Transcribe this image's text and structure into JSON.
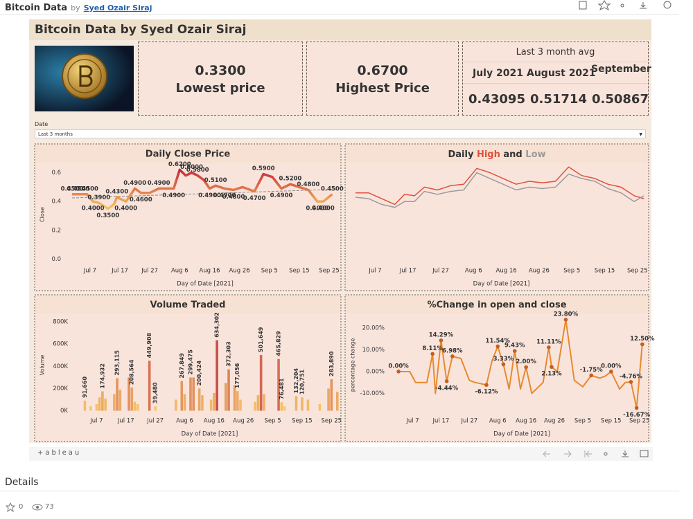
{
  "header": {
    "title": "Bitcoin Data",
    "by": "by",
    "author": "Syed Ozair Siraj"
  },
  "dashboard": {
    "title": "Bitcoin Data by Syed Ozair Siraj",
    "kpis": [
      {
        "value": "0.3300",
        "label": "Lowest price"
      },
      {
        "value": "0.6700",
        "label": "Highest Price"
      }
    ],
    "avg": {
      "title": "Last 3 month avg",
      "months": [
        "July 2021",
        "August 2021",
        "September"
      ],
      "values": [
        "0.43095",
        "0.51714",
        "0.50867"
      ]
    },
    "filter": {
      "label": "Date",
      "value": "Last 3 months"
    }
  },
  "chart_data": [
    {
      "type": "line",
      "title": "Daily Close Price",
      "x_label": "Day of Date [2021]",
      "y_label": "Close",
      "x": [
        "2021-07-01",
        "2021-07-03",
        "2021-07-06",
        "2021-07-08",
        "2021-07-10",
        "2021-07-13",
        "2021-07-15",
        "2021-07-16",
        "2021-07-19",
        "2021-07-20",
        "2021-07-22",
        "2021-07-24",
        "2021-07-27",
        "2021-07-30",
        "2021-08-04",
        "2021-08-06",
        "2021-08-08",
        "2021-08-10",
        "2021-08-12",
        "2021-08-14",
        "2021-08-16",
        "2021-08-18",
        "2021-08-21",
        "2021-08-24",
        "2021-08-27",
        "2021-08-31",
        "2021-09-03",
        "2021-09-06",
        "2021-09-09",
        "2021-09-12",
        "2021-09-15",
        "2021-09-18",
        "2021-09-21",
        "2021-09-23",
        "2021-09-26"
      ],
      "values": [
        0.45,
        0.45,
        0.45,
        0.4,
        0.39,
        0.35,
        0.38,
        0.43,
        0.4,
        0.43,
        0.49,
        0.46,
        0.46,
        0.49,
        0.49,
        0.62,
        0.58,
        0.6,
        0.58,
        0.55,
        0.49,
        0.51,
        0.49,
        0.48,
        0.5,
        0.47,
        0.59,
        0.57,
        0.49,
        0.52,
        0.5,
        0.48,
        0.4,
        0.4,
        0.45
      ],
      "value_labels": [
        "0.4500",
        "0.4500",
        "0.4500",
        "0.4000",
        "0.3900",
        "0.3500",
        null,
        "0.4300",
        "0.4000",
        null,
        "0.4900",
        "0.4600",
        null,
        "0.4900",
        "0.4900",
        "0.6200",
        null,
        "0.6000",
        "0.5800",
        null,
        "0.4900",
        "0.5100",
        "0.4900",
        "0.4800",
        null,
        "0.4700",
        "0.5900",
        null,
        "0.4900",
        "0.5200",
        null,
        "0.4800",
        "0.4000",
        "0.4000",
        "0.4500"
      ],
      "color_scale": [
        "#f5c25e",
        "#c8283a"
      ],
      "trendline": [
        0.425,
        0.485
      ],
      "trendline_color": "#8a8a8a",
      "xlim": [
        "2021-07-01",
        "2021-09-28"
      ],
      "xticks": [
        {
          "value": "2021-07-07",
          "label": "Jul 7"
        },
        {
          "value": "2021-07-17",
          "label": "Jul 17"
        },
        {
          "value": "2021-07-27",
          "label": "Jul 27"
        },
        {
          "value": "2021-08-06",
          "label": "Aug 6"
        },
        {
          "value": "2021-08-16",
          "label": "Aug 16"
        },
        {
          "value": "2021-08-26",
          "label": "Aug 26"
        },
        {
          "value": "2021-09-05",
          "label": "Sep 5"
        },
        {
          "value": "2021-09-15",
          "label": "Sep 15"
        },
        {
          "value": "2021-09-25",
          "label": "Sep 25"
        }
      ],
      "ylim": [
        -0.04,
        0.66
      ],
      "yticks": [
        {
          "value": 0,
          "label": "0.0"
        },
        0.2,
        0.4,
        0.6
      ]
    },
    {
      "type": "line",
      "title_prefix": "Daily",
      "title_joiner": "and",
      "x_label": "Day of Date [2021]",
      "x": [
        "2021-07-01",
        "2021-07-05",
        "2021-07-09",
        "2021-07-13",
        "2021-07-16",
        "2021-07-19",
        "2021-07-22",
        "2021-07-26",
        "2021-07-30",
        "2021-08-03",
        "2021-08-07",
        "2021-08-11",
        "2021-08-15",
        "2021-08-19",
        "2021-08-23",
        "2021-08-27",
        "2021-08-31",
        "2021-09-04",
        "2021-09-08",
        "2021-09-12",
        "2021-09-16",
        "2021-09-20",
        "2021-09-24",
        "2021-09-27"
      ],
      "series": [
        {
          "name": "High",
          "color": "#e0503c",
          "values": [
            0.46,
            0.46,
            0.42,
            0.38,
            0.45,
            0.44,
            0.5,
            0.48,
            0.51,
            0.52,
            0.63,
            0.6,
            0.56,
            0.52,
            0.54,
            0.53,
            0.54,
            0.64,
            0.58,
            0.56,
            0.52,
            0.5,
            0.44,
            0.42
          ]
        },
        {
          "name": "Low",
          "color": "#9a9a9a",
          "values": [
            0.43,
            0.42,
            0.38,
            0.36,
            0.4,
            0.4,
            0.47,
            0.45,
            0.47,
            0.48,
            0.6,
            0.56,
            0.52,
            0.48,
            0.5,
            0.49,
            0.5,
            0.59,
            0.56,
            0.54,
            0.49,
            0.46,
            0.4,
            0.44
          ]
        }
      ],
      "xlim": [
        "2021-07-01",
        "2021-09-28"
      ],
      "xticks": [
        {
          "value": "2021-07-07",
          "label": "Jul 7"
        },
        {
          "value": "2021-07-17",
          "label": "Jul 17"
        },
        {
          "value": "2021-07-27",
          "label": "Jul 27"
        },
        {
          "value": "2021-08-06",
          "label": "Aug 6"
        },
        {
          "value": "2021-08-16",
          "label": "Aug 16"
        },
        {
          "value": "2021-08-26",
          "label": "Aug 26"
        },
        {
          "value": "2021-09-05",
          "label": "Sep 5"
        },
        {
          "value": "2021-09-15",
          "label": "Sep 15"
        },
        {
          "value": "2021-09-25",
          "label": "Sep 25"
        }
      ],
      "ylim": [
        -0.04,
        0.66
      ]
    },
    {
      "type": "bar",
      "title": "Volume Traded",
      "x_label": "Day of Date [2021]",
      "y_label": "Volume",
      "x": [
        "2021-07-03",
        "2021-07-05",
        "2021-07-07",
        "2021-07-08",
        "2021-07-09",
        "2021-07-10",
        "2021-07-13",
        "2021-07-14",
        "2021-07-15",
        "2021-07-18",
        "2021-07-19",
        "2021-07-20",
        "2021-07-21",
        "2021-07-25",
        "2021-07-27",
        "2021-08-03",
        "2021-08-05",
        "2021-08-06",
        "2021-08-08",
        "2021-08-09",
        "2021-08-11",
        "2021-08-12",
        "2021-08-15",
        "2021-08-16",
        "2021-08-17",
        "2021-08-20",
        "2021-08-21",
        "2021-08-23",
        "2021-08-24",
        "2021-08-25",
        "2021-08-30",
        "2021-08-31",
        "2021-09-01",
        "2021-09-02",
        "2021-09-07",
        "2021-09-08",
        "2021-09-09",
        "2021-09-13",
        "2021-09-15",
        "2021-09-17",
        "2021-09-21",
        "2021-09-24",
        "2021-09-25",
        "2021-09-27"
      ],
      "values": [
        91660,
        40000,
        60000,
        120000,
        174932,
        110000,
        150000,
        293115,
        190000,
        300000,
        208564,
        80000,
        60000,
        449908,
        39480,
        100000,
        267849,
        150000,
        299475,
        300000,
        200424,
        140000,
        100000,
        160000,
        634302,
        250000,
        372303,
        230000,
        177056,
        100000,
        80000,
        140000,
        501649,
        150000,
        465829,
        76481,
        40000,
        132204,
        120751,
        100000,
        60000,
        200000,
        283890,
        170000
      ],
      "value_labels": [
        "91,660",
        null,
        null,
        null,
        "174,932",
        null,
        null,
        "293,115",
        null,
        null,
        "208,564",
        null,
        null,
        "449,908",
        "39,480",
        null,
        "267,849",
        null,
        "299,475",
        null,
        "200,424",
        null,
        null,
        null,
        "634,302",
        null,
        "372,303",
        null,
        "177,056",
        null,
        null,
        null,
        "501,649",
        null,
        "465,829",
        "76,481",
        null,
        "132,204",
        "120,751",
        null,
        null,
        null,
        "283,890",
        null
      ],
      "color_scale": [
        "#f9cf6e",
        "#b81d3c"
      ],
      "xlim": [
        "2021-07-01",
        "2021-09-28"
      ],
      "xticks": [
        {
          "value": "2021-07-07",
          "label": "Jul 7"
        },
        {
          "value": "2021-07-17",
          "label": "Jul 17"
        },
        {
          "value": "2021-07-27",
          "label": "Jul 27"
        },
        {
          "value": "2021-08-06",
          "label": "Aug 6"
        },
        {
          "value": "2021-08-16",
          "label": "Aug 16"
        },
        {
          "value": "2021-08-26",
          "label": "Aug 26"
        },
        {
          "value": "2021-09-05",
          "label": "Sep 5"
        },
        {
          "value": "2021-09-15",
          "label": "Sep 15"
        },
        {
          "value": "2021-09-25",
          "label": "Sep 25"
        }
      ],
      "ylim": [
        -40000,
        863000
      ],
      "yticks": [
        {
          "value": 0,
          "label": "0K"
        },
        {
          "value": 200000,
          "label": "200K"
        },
        {
          "value": 400000,
          "label": "400K"
        },
        {
          "value": 600000,
          "label": "600K"
        },
        {
          "value": 800000,
          "label": "800K"
        }
      ]
    },
    {
      "type": "line",
      "title": "%Change in open and close",
      "x_label": "Day of Date [2021]",
      "y_label": "percentage change",
      "x": [
        "2021-07-02",
        "2021-07-06",
        "2021-07-08",
        "2021-07-10",
        "2021-07-12",
        "2021-07-14",
        "2021-07-15",
        "2021-07-17",
        "2021-07-19",
        "2021-07-21",
        "2021-07-24",
        "2021-07-27",
        "2021-07-29",
        "2021-08-02",
        "2021-08-04",
        "2021-08-06",
        "2021-08-08",
        "2021-08-10",
        "2021-08-12",
        "2021-08-14",
        "2021-08-16",
        "2021-08-18",
        "2021-08-22",
        "2021-08-24",
        "2021-08-25",
        "2021-08-27",
        "2021-08-30",
        "2021-09-02",
        "2021-09-05",
        "2021-09-08",
        "2021-09-11",
        "2021-09-13",
        "2021-09-15",
        "2021-09-18",
        "2021-09-20",
        "2021-09-22",
        "2021-09-24",
        "2021-09-26"
      ],
      "values": [
        0,
        0,
        -5,
        -5,
        -5,
        8.11,
        -10,
        14.29,
        -4.44,
        6.98,
        6,
        -4,
        -5,
        -6.12,
        5,
        11.54,
        3.33,
        -8,
        9.43,
        -8,
        2.0,
        -10,
        -5,
        11.11,
        2.13,
        0,
        23.8,
        -4,
        -7,
        -1.75,
        -3,
        -2,
        0,
        -8,
        -5,
        -4.76,
        -16.67,
        12.5
      ],
      "value_labels": [
        "0.00%",
        null,
        null,
        null,
        null,
        "8.11%",
        null,
        "14.29%",
        "-4.44%",
        "6.98%",
        null,
        null,
        null,
        "-6.12%",
        null,
        "11.54%",
        "3.33%",
        null,
        "9.43%",
        null,
        "2.00%",
        null,
        null,
        "11.11%",
        "2.13%",
        null,
        "23.80%",
        null,
        null,
        "-1.75%",
        null,
        null,
        "0.00%",
        null,
        null,
        "-4.76%",
        "-16.67%",
        "12.50%"
      ],
      "color": "#e8892c",
      "marker_color": "#c4601c",
      "xlim": [
        "2021-07-01",
        "2021-09-28"
      ],
      "xticks": [
        {
          "value": "2021-07-07",
          "label": "Jul 7"
        },
        {
          "value": "2021-07-17",
          "label": "Jul 17"
        },
        {
          "value": "2021-07-27",
          "label": "Jul 27"
        },
        {
          "value": "2021-08-06",
          "label": "Aug 6"
        },
        {
          "value": "2021-08-16",
          "label": "Aug 16"
        },
        {
          "value": "2021-08-26",
          "label": "Aug 26"
        },
        {
          "value": "2021-09-05",
          "label": "Sep 5"
        },
        {
          "value": "2021-09-15",
          "label": "Sep 15"
        },
        {
          "value": "2021-09-25",
          "label": "Sep 25"
        }
      ],
      "ylim": [
        -20,
        26
      ],
      "yticks": [
        {
          "value": -10,
          "label": "-10.00%"
        },
        {
          "value": 0,
          "label": "0.00%"
        },
        {
          "value": 10,
          "label": "10.00%"
        },
        {
          "value": 20,
          "label": "20.00%"
        }
      ]
    }
  ],
  "footer": {
    "logo": "+ableau",
    "details": "Details",
    "favorites": "0",
    "views": "73"
  }
}
